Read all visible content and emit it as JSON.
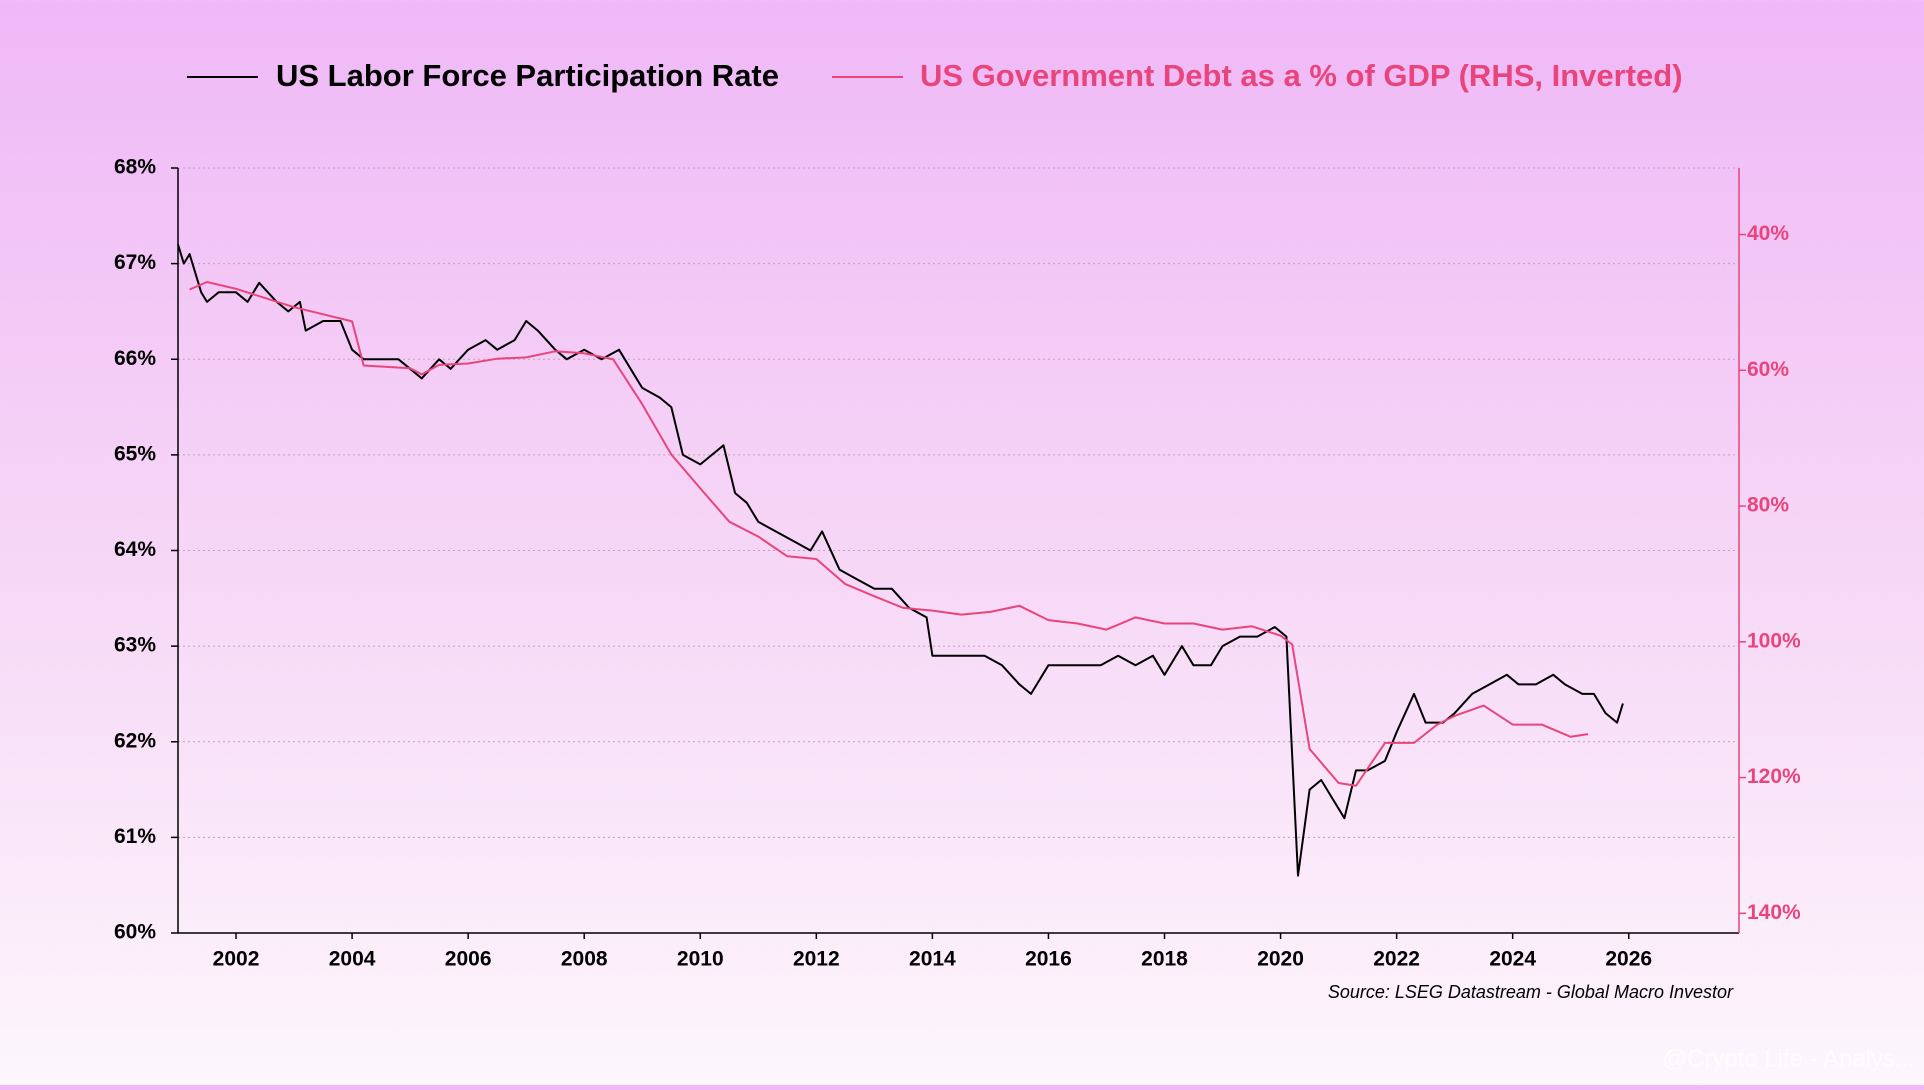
{
  "chart_data": {
    "type": "line",
    "xlim": [
      2001,
      2027.9
    ],
    "xticks": [
      2002,
      2004,
      2006,
      2008,
      2010,
      2012,
      2014,
      2016,
      2018,
      2020,
      2022,
      2024,
      2026
    ],
    "ylim": [
      60,
      68
    ],
    "yticks": [
      {
        "value": 60,
        "label": "60%"
      },
      {
        "value": 61,
        "label": "61%"
      },
      {
        "value": 62,
        "label": "62%"
      },
      {
        "value": 63,
        "label": "63%"
      },
      {
        "value": 64,
        "label": "64%"
      },
      {
        "value": 65,
        "label": "65%"
      },
      {
        "value": 66,
        "label": "66%"
      },
      {
        "value": 67,
        "label": "67%"
      },
      {
        "value": 68,
        "label": "68%"
      }
    ],
    "y2lim": [
      30.2,
      142.9
    ],
    "y2_inverted": true,
    "y2ticks": [
      {
        "value": 40,
        "label": "40%"
      },
      {
        "value": 60,
        "label": "60%"
      },
      {
        "value": 80,
        "label": "80%"
      },
      {
        "value": 100,
        "label": "100%"
      },
      {
        "value": 120,
        "label": "120%"
      },
      {
        "value": 140,
        "label": "140%"
      }
    ],
    "grid": true,
    "source": "Source: LSEG Datastream - Global Macro Investor",
    "watermark": "@Crypto Life - Analys...",
    "series": [
      {
        "name": "US Labor Force Participation Rate",
        "color": "#000000",
        "x": [
          2001.0,
          2001.1,
          2001.2,
          2001.4,
          2001.5,
          2001.7,
          2002.0,
          2002.2,
          2002.4,
          2002.7,
          2002.9,
          2003.1,
          2003.2,
          2003.5,
          2003.8,
          2004.0,
          2004.2,
          2004.5,
          2004.8,
          2005.0,
          2005.2,
          2005.5,
          2005.7,
          2006.0,
          2006.3,
          2006.5,
          2006.8,
          2007.0,
          2007.2,
          2007.5,
          2007.7,
          2008.0,
          2008.3,
          2008.6,
          2008.8,
          2009.0,
          2009.3,
          2009.5,
          2009.7,
          2010.0,
          2010.2,
          2010.4,
          2010.6,
          2010.8,
          2011.0,
          2011.3,
          2011.6,
          2011.9,
          2012.1,
          2012.4,
          2012.7,
          2013.0,
          2013.3,
          2013.6,
          2013.9,
          2014.0,
          2014.3,
          2014.6,
          2014.9,
          2015.2,
          2015.5,
          2015.7,
          2016.0,
          2016.3,
          2016.6,
          2016.9,
          2017.2,
          2017.5,
          2017.8,
          2018.0,
          2018.3,
          2018.5,
          2018.8,
          2019.0,
          2019.3,
          2019.6,
          2019.9,
          2020.1,
          2020.3,
          2020.5,
          2020.7,
          2020.9,
          2021.1,
          2021.3,
          2021.5,
          2021.8,
          2022.0,
          2022.3,
          2022.5,
          2022.8,
          2023.0,
          2023.3,
          2023.6,
          2023.9,
          2024.1,
          2024.4,
          2024.7,
          2024.9,
          2025.2,
          2025.4,
          2025.6,
          2025.8,
          2025.9
        ],
        "values": [
          67.2,
          67.0,
          67.1,
          66.7,
          66.6,
          66.7,
          66.7,
          66.6,
          66.8,
          66.6,
          66.5,
          66.6,
          66.3,
          66.4,
          66.4,
          66.1,
          66.0,
          66.0,
          66.0,
          65.9,
          65.8,
          66.0,
          65.9,
          66.1,
          66.2,
          66.1,
          66.2,
          66.4,
          66.3,
          66.1,
          66.0,
          66.1,
          66.0,
          66.1,
          65.9,
          65.7,
          65.6,
          65.5,
          65.0,
          64.9,
          65.0,
          65.1,
          64.6,
          64.5,
          64.3,
          64.2,
          64.1,
          64.0,
          64.2,
          63.8,
          63.7,
          63.6,
          63.6,
          63.4,
          63.3,
          62.9,
          62.9,
          62.9,
          62.9,
          62.8,
          62.6,
          62.5,
          62.8,
          62.8,
          62.8,
          62.8,
          62.9,
          62.8,
          62.9,
          62.7,
          63.0,
          62.8,
          62.8,
          63.0,
          63.1,
          63.1,
          63.2,
          63.1,
          60.6,
          61.5,
          61.6,
          61.4,
          61.2,
          61.7,
          61.7,
          61.8,
          62.1,
          62.5,
          62.2,
          62.2,
          62.3,
          62.5,
          62.6,
          62.7,
          62.6,
          62.6,
          62.7,
          62.6,
          62.5,
          62.5,
          62.3,
          62.2,
          62.4
        ]
      },
      {
        "name": "US Government Debt as a % of GDP (RHS, Inverted)",
        "color": "#e8457c",
        "axis": "y2",
        "x": [
          2001.2,
          2001.5,
          2002.0,
          2003.0,
          2004.0,
          2004.2,
          2005.0,
          2005.2,
          2005.5,
          2006.0,
          2006.5,
          2007.0,
          2007.5,
          2008.0,
          2008.5,
          2009.0,
          2009.5,
          2010.0,
          2010.5,
          2011.0,
          2011.5,
          2012.0,
          2012.5,
          2013.0,
          2013.5,
          2014.0,
          2014.5,
          2015.0,
          2015.5,
          2016.0,
          2016.5,
          2017.0,
          2017.5,
          2018.0,
          2018.5,
          2019.0,
          2019.5,
          2020.0,
          2020.2,
          2020.5,
          2021.0,
          2021.3,
          2021.8,
          2022.3,
          2022.7,
          2023.0,
          2023.5,
          2024.0,
          2024.5,
          2025.0,
          2025.3
        ],
        "values": [
          48.1,
          47.0,
          48.0,
          50.7,
          52.8,
          59.3,
          59.7,
          60.6,
          59.2,
          59.0,
          58.3,
          58.1,
          57.2,
          57.5,
          58.4,
          65.0,
          72.4,
          77.4,
          82.3,
          84.5,
          87.4,
          87.8,
          91.5,
          93.3,
          95.0,
          95.4,
          96.0,
          95.6,
          94.7,
          96.8,
          97.3,
          98.2,
          96.4,
          97.3,
          97.3,
          98.2,
          97.7,
          99.1,
          100.4,
          115.8,
          120.8,
          121.2,
          114.9,
          114.9,
          112.2,
          110.9,
          109.4,
          112.2,
          112.2,
          114.0,
          113.6
        ]
      }
    ]
  }
}
